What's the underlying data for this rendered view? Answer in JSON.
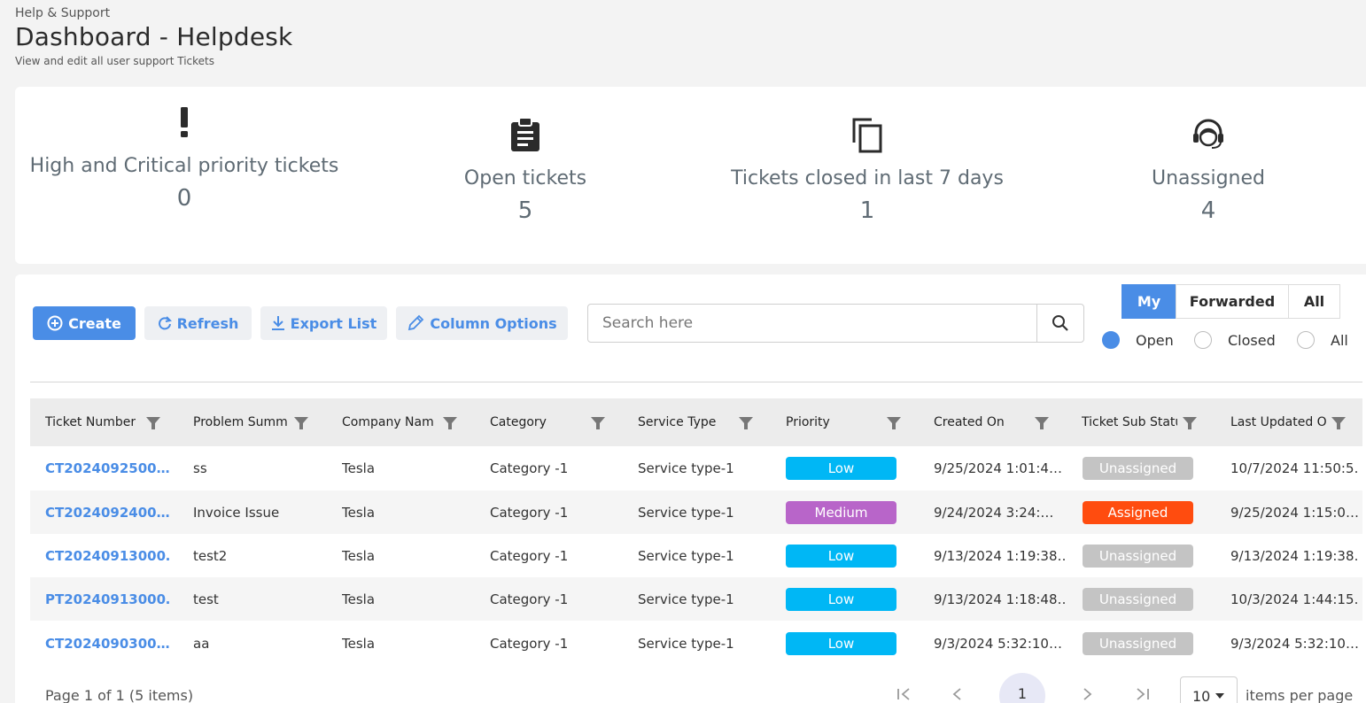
{
  "header": {
    "breadcrumb": "Help & Support",
    "title": "Dashboard - Helpdesk",
    "subtitle": "View and edit all user support Tickets"
  },
  "stats": [
    {
      "icon": "exclamation-icon",
      "label": "High and Critical priority tickets",
      "value": "0"
    },
    {
      "icon": "clipboard-icon",
      "label": "Open tickets",
      "value": "5"
    },
    {
      "icon": "copy-icon",
      "label": "Tickets closed in last 7 days",
      "value": "1"
    },
    {
      "icon": "headset-icon",
      "label": "Unassigned",
      "value": "4"
    }
  ],
  "toolbar": {
    "create_label": "Create",
    "refresh_label": "Refresh",
    "export_label": "Export List",
    "column_options_label": "Column Options",
    "search_placeholder": "Search here"
  },
  "view_tabs": [
    "My",
    "Forwarded",
    "All"
  ],
  "status_filter": {
    "options": [
      "Open",
      "Closed",
      "All"
    ],
    "selected": "Open"
  },
  "table": {
    "columns": [
      "Ticket Number",
      "Problem Summ",
      "Company Nam",
      "Category",
      "Service Type",
      "Priority",
      "Created On",
      "Ticket Sub Statu",
      "Last Updated O"
    ],
    "rows": [
      {
        "ticket": "CT2024092500…",
        "summary": "ss",
        "company": "Tesla",
        "category": "Category -1",
        "service": "Service type-1",
        "priority": "Low",
        "created": "9/25/2024 1:01:4…",
        "substatus": "Unassigned",
        "updated": "10/7/2024 11:50:5…"
      },
      {
        "ticket": "CT2024092400…",
        "summary": "Invoice Issue",
        "company": "Tesla",
        "category": "Category -1",
        "service": "Service type-1",
        "priority": "Medium",
        "created": "9/24/2024 3:24:…",
        "substatus": "Assigned",
        "updated": "9/25/2024 1:15:0…"
      },
      {
        "ticket": "CT20240913000…",
        "summary": "test2",
        "company": "Tesla",
        "category": "Category -1",
        "service": "Service type-1",
        "priority": "Low",
        "created": "9/13/2024 1:19:38…",
        "substatus": "Unassigned",
        "updated": "9/13/2024 1:19:38…"
      },
      {
        "ticket": "PT20240913000…",
        "summary": "test",
        "company": "Tesla",
        "category": "Category -1",
        "service": "Service type-1",
        "priority": "Low",
        "created": "9/13/2024 1:18:48…",
        "substatus": "Unassigned",
        "updated": "10/3/2024 1:44:15…"
      },
      {
        "ticket": "CT2024090300…",
        "summary": "aa",
        "company": "Tesla",
        "category": "Category -1",
        "service": "Service type-1",
        "priority": "Low",
        "created": "9/3/2024 5:32:10…",
        "substatus": "Unassigned",
        "updated": "9/3/2024 5:32:10…"
      }
    ]
  },
  "colors": {
    "accent": "#4a8de6",
    "priority_low": "#00b7f5",
    "priority_medium": "#b865c9",
    "status_assigned": "#ff4c0f",
    "status_unassigned": "#c4c4c4"
  },
  "pager": {
    "summary": "Page 1 of 1 (5 items)",
    "current_page": "1",
    "page_size": "10",
    "page_size_label": "items per page"
  }
}
